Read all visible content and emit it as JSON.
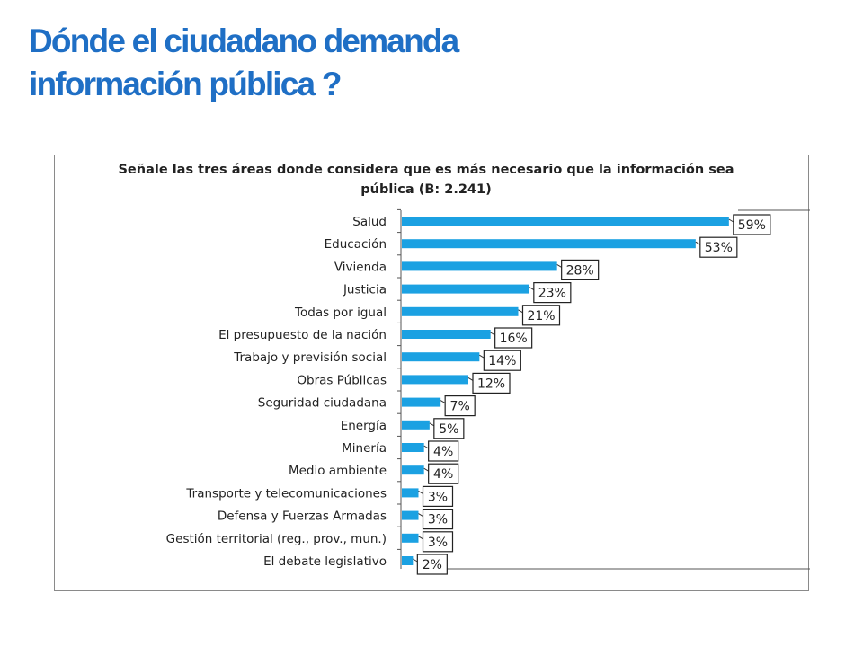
{
  "page": {
    "title_line1": "Dónde el ciudadano demanda",
    "title_line2": "información pública ?"
  },
  "colors": {
    "title": "#1f6fc5",
    "bar": "#1ba1e2",
    "frame": "#8a8a8a",
    "text": "#222222"
  },
  "chart_data": {
    "type": "bar",
    "orientation": "horizontal",
    "title": "Señale las tres áreas donde considera que es más necesario que la información sea pública (B: 2.241)",
    "title_line1": "Señale las tres áreas donde considera que es más necesario que la información sea",
    "title_line2": "pública (B: 2.241)",
    "categories": [
      "Salud",
      "Educación",
      "Vivienda",
      "Justicia",
      "Todas por igual",
      "El presupuesto de la nación",
      "Trabajo y previsión social",
      "Obras Públicas",
      "Seguridad ciudadana",
      "Energía",
      "Minería",
      "Medio ambiente",
      "Transporte y telecomunicaciones",
      "Defensa y Fuerzas Armadas",
      "Gestión territorial (reg., prov., mun.)",
      "El debate legislativo"
    ],
    "values": [
      59,
      53,
      28,
      23,
      21,
      16,
      14,
      12,
      7,
      5,
      4,
      4,
      3,
      3,
      3,
      2
    ],
    "value_labels": [
      "59%",
      "53%",
      "28%",
      "23%",
      "21%",
      "16%",
      "14%",
      "12%",
      "7%",
      "5%",
      "4%",
      "4%",
      "3%",
      "3%",
      "3%",
      "2%"
    ],
    "unit": "%",
    "xlim": [
      0,
      60
    ],
    "grid": false,
    "legend": "none"
  }
}
